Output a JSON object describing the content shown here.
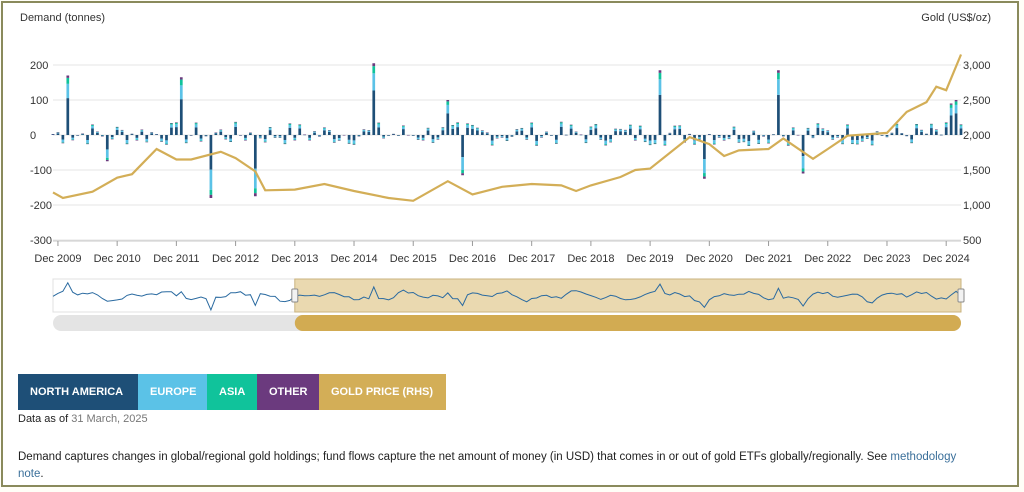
{
  "colors": {
    "north_america": "#1e4f77",
    "europe": "#5bc2e7",
    "asia": "#10c39b",
    "other": "#6b3a7e",
    "gold": "#d3ae57",
    "navigator_fill": "#ead9b0",
    "scrollbar_track": "#e4e4e4",
    "scrollbar_thumb": "#d2ab52"
  },
  "chart_data": {
    "type": "bar",
    "left_axis_label": "Demand (tonnes)",
    "right_axis_label": "Gold (US$/oz)",
    "left_axis": {
      "ticks": [
        "200",
        "100",
        "0",
        "-100",
        "-200",
        "-300"
      ],
      "range": [
        -300,
        200
      ]
    },
    "right_axis": {
      "ticks": [
        "3,000",
        "2,500",
        "2,000",
        "1,500",
        "1,000",
        "500"
      ],
      "range": [
        500,
        3000
      ]
    },
    "x_ticks": [
      "Dec 2009",
      "Dec 2010",
      "Dec 2011",
      "Dec 2012",
      "Dec 2013",
      "Dec 2014",
      "Dec 2015",
      "Dec 2016",
      "Dec 2017",
      "Dec 2018",
      "Dec 2019",
      "Dec 2020",
      "Dec 2021",
      "Dec 2022",
      "Dec 2023",
      "Dec 2024"
    ],
    "period": {
      "start": "Nov 2009",
      "end": "Mar 2025",
      "frequency": "monthly"
    },
    "bar_series": [
      "North America",
      "Europe",
      "Asia",
      "Other"
    ],
    "gold_price_series": {
      "name": "Gold Price (RHS)",
      "points": [
        [
          "Nov 2009",
          1180
        ],
        [
          "Jan 2010",
          1100
        ],
        [
          "Jul 2010",
          1190
        ],
        [
          "Dec 2010",
          1390
        ],
        [
          "Mar 2011",
          1440
        ],
        [
          "Aug 2011",
          1800
        ],
        [
          "Dec 2011",
          1650
        ],
        [
          "Mar 2012",
          1650
        ],
        [
          "Sep 2012",
          1760
        ],
        [
          "Dec 2012",
          1670
        ],
        [
          "Apr 2013",
          1480
        ],
        [
          "Jun 2013",
          1210
        ],
        [
          "Dec 2013",
          1220
        ],
        [
          "Jun 2014",
          1300
        ],
        [
          "Dec 2014",
          1200
        ],
        [
          "Jul 2015",
          1100
        ],
        [
          "Dec 2015",
          1060
        ],
        [
          "Jul 2016",
          1340
        ],
        [
          "Dec 2016",
          1150
        ],
        [
          "Jun 2017",
          1260
        ],
        [
          "Dec 2017",
          1300
        ],
        [
          "Jun 2018",
          1280
        ],
        [
          "Sep 2018",
          1200
        ],
        [
          "Dec 2018",
          1280
        ],
        [
          "Jun 2019",
          1400
        ],
        [
          "Sep 2019",
          1500
        ],
        [
          "Dec 2019",
          1520
        ],
        [
          "Aug 2020",
          1970
        ],
        [
          "Dec 2020",
          1870
        ],
        [
          "Mar 2021",
          1700
        ],
        [
          "Jun 2021",
          1780
        ],
        [
          "Dec 2021",
          1800
        ],
        [
          "Mar 2022",
          1950
        ],
        [
          "Sep 2022",
          1660
        ],
        [
          "Dec 2022",
          1800
        ],
        [
          "Apr 2023",
          1990
        ],
        [
          "Dec 2023",
          2030
        ],
        [
          "Apr 2024",
          2330
        ],
        [
          "Aug 2024",
          2470
        ],
        [
          "Oct 2024",
          2690
        ],
        [
          "Dec 2024",
          2640
        ],
        [
          "Mar 2025",
          3150
        ]
      ]
    },
    "notable_monthly_totals": [
      [
        "Feb 2010",
        170
      ],
      [
        "Oct 2010",
        -75
      ],
      [
        "Jan 2012",
        165
      ],
      [
        "Jul 2012",
        -180
      ],
      [
        "Apr 2013",
        -175
      ],
      [
        "Apr 2015",
        205
      ],
      [
        "Oct 2016",
        -115
      ],
      [
        "Jul 2016",
        100
      ],
      [
        "Feb 2020",
        185
      ],
      [
        "Nov 2020",
        -125
      ],
      [
        "Feb 2022",
        185
      ],
      [
        "Jul 2022",
        -110
      ],
      [
        "Jan 2025",
        90
      ],
      [
        "Feb 2025",
        100
      ]
    ],
    "navigator_range": {
      "from": "Dec 2013",
      "to": "Mar 2025"
    },
    "grid": true,
    "legend_position": "bottom-left"
  },
  "legend": [
    {
      "label": "NORTH AMERICA",
      "key": "north_america"
    },
    {
      "label": "EUROPE",
      "key": "europe"
    },
    {
      "label": "ASIA",
      "key": "asia"
    },
    {
      "label": "OTHER",
      "key": "other"
    },
    {
      "label": "GOLD PRICE (RHS)",
      "key": "gold"
    }
  ],
  "data_as_of": {
    "label": "Data as of",
    "date": "31 March, 2025"
  },
  "note": {
    "text": "Demand captures changes in global/regional gold holdings; fund flows capture the net amount of money (in USD) that comes in or out of gold ETFs globally/regionally. See",
    "link": "methodology note",
    "suffix": "."
  }
}
